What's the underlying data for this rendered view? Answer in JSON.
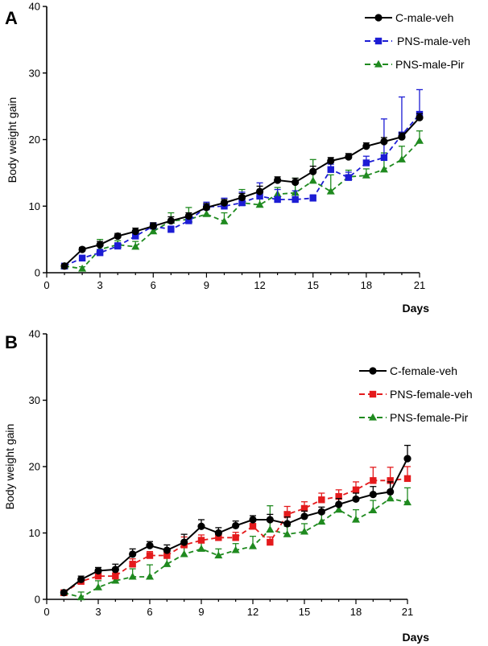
{
  "chart_data": [
    {
      "type": "line",
      "panel": "A",
      "title": "",
      "xlabel": "Days",
      "ylabel": "Body weight gain",
      "xlim": [
        0,
        21
      ],
      "ylim": [
        0,
        40
      ],
      "xticks": [
        0,
        3,
        6,
        9,
        12,
        15,
        18,
        21
      ],
      "yticks": [
        0,
        10,
        20,
        30,
        40
      ],
      "grid": false,
      "legend_position": "top-right",
      "x": [
        1,
        2,
        3,
        4,
        5,
        6,
        7,
        8,
        9,
        10,
        11,
        12,
        13,
        14,
        15,
        16,
        17,
        18,
        19,
        20,
        21
      ],
      "series": [
        {
          "name": "C-male-veh",
          "color": "#000000",
          "marker": "circle",
          "dash": "solid",
          "values": [
            1.0,
            3.5,
            4.2,
            5.5,
            6.2,
            7.0,
            7.8,
            8.5,
            9.8,
            10.5,
            11.3,
            12.2,
            13.9,
            13.6,
            15.2,
            16.8,
            17.4,
            19.0,
            19.7,
            20.4,
            23.3
          ],
          "errors": [
            0.2,
            0.3,
            0.5,
            0.4,
            0.5,
            0.5,
            0.6,
            0.5,
            0.6,
            0.5,
            0.6,
            0.8,
            0.5,
            0.6,
            0.8,
            0.5,
            0.5,
            0.5,
            0.6,
            0.6,
            0.6
          ]
        },
        {
          "name": "PNS-male-veh",
          "color": "#1c1cd4",
          "marker": "square",
          "dash": "dash",
          "values": [
            1.0,
            2.2,
            3.0,
            4.0,
            5.5,
            7.0,
            6.5,
            7.8,
            9.9,
            10.0,
            10.5,
            11.5,
            11.0,
            11.0,
            11.2,
            15.5,
            14.3,
            16.5,
            17.3,
            20.7,
            23.8
          ],
          "errors": [
            0.2,
            0.3,
            0.5,
            0.5,
            0.5,
            0.5,
            0.5,
            0.6,
            0.7,
            1.2,
            1.6,
            2.0,
            1.5,
            1.3,
            0.5,
            0.8,
            0.8,
            1.0,
            5.8,
            5.7,
            3.7
          ]
        },
        {
          "name": "PNS-male-Pir",
          "color": "#1f8a1f",
          "marker": "triangle",
          "dash": "dash",
          "values": [
            1.0,
            0.6,
            3.5,
            4.2,
            3.9,
            6.2,
            7.8,
            8.0,
            8.8,
            7.7,
            10.5,
            10.2,
            11.8,
            12.0,
            13.8,
            12.2,
            14.4,
            14.6,
            15.5,
            17.0,
            19.8
          ],
          "errors": [
            0.2,
            0.3,
            1.5,
            0.6,
            0.8,
            0.9,
            1.2,
            1.8,
            1.0,
            1.3,
            2.0,
            1.0,
            1.0,
            2.2,
            3.2,
            2.5,
            1.0,
            1.0,
            2.5,
            2.0,
            1.5
          ]
        }
      ]
    },
    {
      "type": "line",
      "panel": "B",
      "title": "",
      "xlabel": "Days",
      "ylabel": "Body weight gain",
      "xlim": [
        0,
        21
      ],
      "ylim": [
        0,
        40
      ],
      "xticks": [
        0,
        3,
        6,
        9,
        12,
        15,
        18,
        21
      ],
      "yticks": [
        0,
        10,
        20,
        30,
        40
      ],
      "grid": false,
      "legend_position": "top-right",
      "x": [
        1,
        2,
        3,
        4,
        5,
        6,
        7,
        8,
        9,
        10,
        11,
        12,
        13,
        14,
        15,
        16,
        17,
        18,
        19,
        20,
        21
      ],
      "series": [
        {
          "name": "C-female-veh",
          "color": "#000000",
          "marker": "circle",
          "dash": "solid",
          "values": [
            1.0,
            3.0,
            4.3,
            4.5,
            6.8,
            8.1,
            7.4,
            8.6,
            11.0,
            10.0,
            11.1,
            12.0,
            12.0,
            11.4,
            12.5,
            13.2,
            14.3,
            15.1,
            15.8,
            16.2,
            21.2
          ],
          "errors": [
            0.2,
            0.5,
            0.5,
            0.8,
            0.8,
            0.6,
            0.8,
            1.2,
            1.0,
            0.8,
            0.7,
            0.6,
            0.8,
            1.0,
            0.8,
            0.7,
            0.9,
            0.9,
            1.2,
            1.5,
            2.0
          ]
        },
        {
          "name": "PNS-female-veh",
          "color": "#e41a1c",
          "marker": "square",
          "dash": "dash",
          "values": [
            1.0,
            2.7,
            3.5,
            3.5,
            5.3,
            6.6,
            6.6,
            8.2,
            8.9,
            9.3,
            9.3,
            11.0,
            8.6,
            12.8,
            13.7,
            15.0,
            15.5,
            16.5,
            17.9,
            17.9,
            18.2
          ],
          "errors": [
            0.2,
            0.4,
            0.5,
            0.5,
            0.8,
            0.6,
            0.8,
            1.2,
            0.8,
            0.7,
            0.8,
            0.8,
            0.8,
            1.2,
            1.0,
            1.0,
            1.0,
            1.2,
            2.0,
            2.0,
            1.8
          ]
        },
        {
          "name": "PNS-female-Pir",
          "color": "#1f8a1f",
          "marker": "triangle",
          "dash": "dash",
          "values": [
            1.0,
            0.3,
            1.8,
            2.8,
            3.4,
            3.4,
            5.3,
            6.8,
            7.6,
            6.6,
            7.4,
            8.0,
            10.5,
            9.8,
            10.2,
            11.7,
            13.5,
            12.0,
            13.4,
            15.2,
            14.6
          ],
          "errors": [
            0.2,
            0.8,
            1.0,
            1.0,
            1.2,
            1.8,
            1.2,
            1.2,
            1.5,
            1.0,
            1.0,
            1.5,
            3.6,
            1.2,
            1.2,
            1.2,
            1.0,
            1.5,
            1.5,
            1.0,
            2.2
          ]
        }
      ]
    }
  ]
}
